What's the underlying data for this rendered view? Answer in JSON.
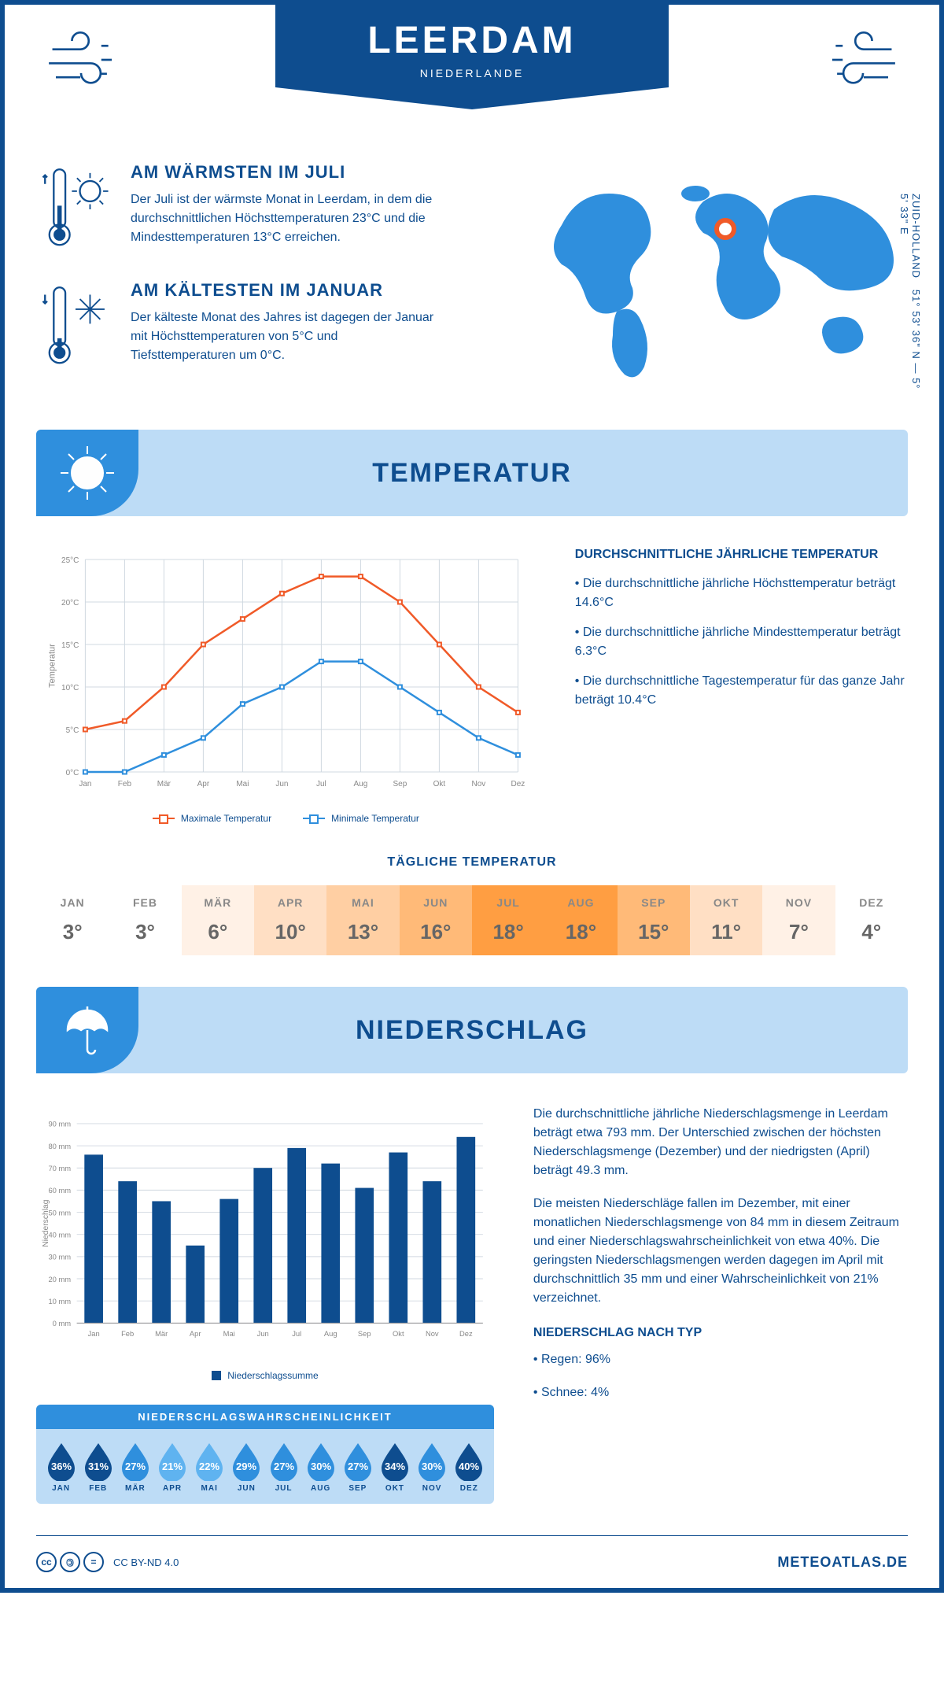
{
  "header": {
    "city": "LEERDAM",
    "country": "NIEDERLANDE"
  },
  "coords": {
    "region": "ZUID-HOLLAND",
    "lat": "51° 53' 36\" N",
    "lon": "5° 5' 33\" E"
  },
  "intro": {
    "warm": {
      "title": "AM WÄRMSTEN IM JULI",
      "text": "Der Juli ist der wärmste Monat in Leerdam, in dem die durchschnittlichen Höchsttemperaturen 23°C und die Mindesttemperaturen 13°C erreichen."
    },
    "cold": {
      "title": "AM KÄLTESTEN IM JANUAR",
      "text": "Der kälteste Monat des Jahres ist dagegen der Januar mit Höchsttemperaturen von 5°C und Tiefsttemperaturen um 0°C."
    }
  },
  "months": [
    "Jan",
    "Feb",
    "Mär",
    "Apr",
    "Mai",
    "Jun",
    "Jul",
    "Aug",
    "Sep",
    "Okt",
    "Nov",
    "Dez"
  ],
  "months_upper": [
    "JAN",
    "FEB",
    "MÄR",
    "APR",
    "MAI",
    "JUN",
    "JUL",
    "AUG",
    "SEP",
    "OKT",
    "NOV",
    "DEZ"
  ],
  "temp_section": {
    "title": "TEMPERATUR",
    "chart": {
      "type": "line",
      "ylabel": "Temperatur",
      "ylim": [
        0,
        25
      ],
      "ytick_step": 5,
      "ytick_labels": [
        "0°C",
        "5°C",
        "10°C",
        "15°C",
        "20°C",
        "25°C"
      ],
      "max_series": {
        "label": "Maximale Temperatur",
        "color": "#f05a28",
        "values": [
          5,
          6,
          10,
          15,
          18,
          21,
          23,
          23,
          20,
          15,
          10,
          7
        ]
      },
      "min_series": {
        "label": "Minimale Temperatur",
        "color": "#2f8fdd",
        "values": [
          0,
          0,
          2,
          4,
          8,
          10,
          13,
          13,
          10,
          7,
          4,
          2
        ]
      },
      "grid_color": "#d0d8e0",
      "background": "#ffffff",
      "line_width": 2.5,
      "marker_size": 5
    },
    "side": {
      "title": "DURCHSCHNITTLICHE JÄHRLICHE TEMPERATUR",
      "b1": "• Die durchschnittliche jährliche Höchsttemperatur beträgt 14.6°C",
      "b2": "• Die durchschnittliche jährliche Mindesttemperatur beträgt 6.3°C",
      "b3": "• Die durchschnittliche Tagestemperatur für das ganze Jahr beträgt 10.4°C"
    },
    "daily": {
      "title": "TÄGLICHE TEMPERATUR",
      "values": [
        "3°",
        "3°",
        "6°",
        "10°",
        "13°",
        "16°",
        "18°",
        "18°",
        "15°",
        "11°",
        "7°",
        "4°"
      ],
      "colors": [
        "#ffffff",
        "#ffffff",
        "#fff1e6",
        "#ffdfc4",
        "#ffcfa3",
        "#ffba78",
        "#ff9e42",
        "#ff9e42",
        "#ffba78",
        "#ffdfc4",
        "#fff1e6",
        "#ffffff"
      ]
    }
  },
  "precip_section": {
    "title": "NIEDERSCHLAG",
    "chart": {
      "type": "bar",
      "ylabel": "Niederschlag",
      "ylim": [
        0,
        90
      ],
      "ytick_step": 10,
      "values": [
        76,
        64,
        55,
        35,
        56,
        70,
        79,
        72,
        61,
        77,
        64,
        84
      ],
      "bar_color": "#0e4d8f",
      "grid_color": "#d0d8e0",
      "bar_width": 0.55,
      "legend": "Niederschlagssumme"
    },
    "text1": "Die durchschnittliche jährliche Niederschlagsmenge in Leerdam beträgt etwa 793 mm. Der Unterschied zwischen der höchsten Niederschlagsmenge (Dezember) und der niedrigsten (April) beträgt 49.3 mm.",
    "text2": "Die meisten Niederschläge fallen im Dezember, mit einer monatlichen Niederschlagsmenge von 84 mm in diesem Zeitraum und einer Niederschlagswahrscheinlichkeit von etwa 40%. Die geringsten Niederschlagsmengen werden dagegen im April mit durchschnittlich 35 mm und einer Wahrscheinlichkeit von 21% verzeichnet.",
    "type_title": "NIEDERSCHLAG NACH TYP",
    "type_b1": "• Regen: 96%",
    "type_b2": "• Schnee: 4%",
    "prob": {
      "title": "NIEDERSCHLAGSWAHRSCHEINLICHKEIT",
      "values": [
        "36%",
        "31%",
        "27%",
        "21%",
        "22%",
        "29%",
        "27%",
        "30%",
        "27%",
        "34%",
        "30%",
        "40%"
      ],
      "colors": [
        "#0e4d8f",
        "#0e4d8f",
        "#2f8fdd",
        "#5fb3f0",
        "#5fb3f0",
        "#2f8fdd",
        "#2f8fdd",
        "#2f8fdd",
        "#2f8fdd",
        "#0e4d8f",
        "#2f8fdd",
        "#0e4d8f"
      ]
    }
  },
  "footer": {
    "license": "CC BY-ND 4.0",
    "brand": "METEOATLAS.DE"
  }
}
